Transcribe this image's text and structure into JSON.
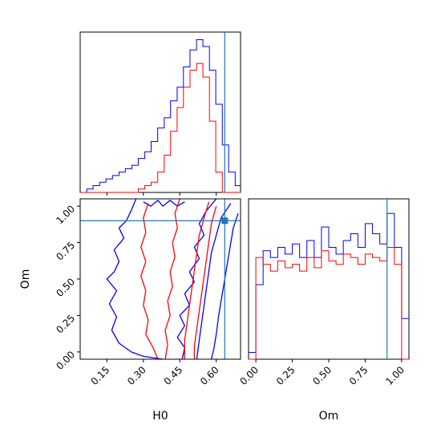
{
  "chart_data": {
    "type": "corner",
    "parameters": [
      "H0",
      "Om"
    ],
    "truths": {
      "H0": 0.635,
      "Om": 0.9
    },
    "colors": {
      "blue": "#0000ff",
      "red": "#ff0000",
      "truth": "#1f77b4",
      "axes": "#000000"
    },
    "H0_ticks": [
      0.15,
      0.3,
      0.45,
      0.6
    ],
    "H0_tick_labels": [
      "0.15",
      "0.30",
      "0.45",
      "0.60"
    ],
    "Om_ticks": [
      0.0,
      0.25,
      0.5,
      0.75,
      1.0
    ],
    "Om_tick_labels": [
      "0.00",
      "0.25",
      "0.50",
      "0.75",
      "1.00"
    ],
    "H0_range": [
      0.04,
      0.7
    ],
    "Om_range": [
      -0.05,
      1.05
    ],
    "hist_H0": {
      "bins": [
        0.04,
        0.067,
        0.093,
        0.12,
        0.146,
        0.173,
        0.2,
        0.226,
        0.253,
        0.279,
        0.306,
        0.332,
        0.359,
        0.386,
        0.412,
        0.439,
        0.465,
        0.492,
        0.519,
        0.545,
        0.572,
        0.598,
        0.625,
        0.651,
        0.678,
        0.7
      ],
      "series": [
        {
          "color": "blue",
          "counts": [
            0,
            1,
            2,
            3,
            4,
            5,
            6,
            7,
            8,
            10,
            12,
            15,
            19,
            22,
            27,
            31,
            37,
            42,
            45,
            43,
            36,
            26,
            14,
            6,
            2
          ]
        },
        {
          "color": "red",
          "counts": [
            0,
            0,
            0,
            0,
            0,
            0,
            0,
            0,
            0,
            1,
            2,
            3,
            6,
            11,
            18,
            25,
            31,
            36,
            38,
            34,
            21,
            6,
            0,
            0,
            0
          ]
        }
      ]
    },
    "hist_Om": {
      "bins": [
        -0.05,
        0.0,
        0.05,
        0.1,
        0.15,
        0.2,
        0.25,
        0.3,
        0.35,
        0.4,
        0.45,
        0.5,
        0.55,
        0.6,
        0.65,
        0.7,
        0.75,
        0.8,
        0.85,
        0.9,
        0.95,
        1.0,
        1.05
      ],
      "series": [
        {
          "color": "blue",
          "counts": [
            2,
            22,
            32,
            30,
            33,
            31,
            34,
            30,
            35,
            30,
            39,
            33,
            31,
            35,
            37,
            33,
            40,
            37,
            34,
            43,
            33,
            12
          ]
        },
        {
          "color": "red",
          "counts": [
            0,
            30,
            28,
            26,
            29,
            27,
            28,
            26,
            30,
            27,
            32,
            29,
            28,
            31,
            30,
            28,
            31,
            30,
            29,
            33,
            28,
            0
          ]
        }
      ]
    },
    "contours": [
      {
        "color": "blue",
        "points": [
          [
            0.27,
            1.05
          ],
          [
            0.25,
            0.97
          ],
          [
            0.23,
            0.9
          ],
          [
            0.2,
            0.85
          ],
          [
            0.22,
            0.78
          ],
          [
            0.18,
            0.7
          ],
          [
            0.2,
            0.62
          ],
          [
            0.18,
            0.55
          ],
          [
            0.15,
            0.5
          ],
          [
            0.19,
            0.42
          ],
          [
            0.16,
            0.33
          ],
          [
            0.19,
            0.24
          ],
          [
            0.17,
            0.15
          ],
          [
            0.2,
            0.06
          ],
          [
            0.25,
            0.0
          ],
          [
            0.3,
            -0.03
          ],
          [
            0.38,
            -0.05
          ]
        ]
      },
      {
        "color": "blue",
        "points": [
          [
            0.69,
            0.95
          ],
          [
            0.67,
            0.85
          ],
          [
            0.66,
            0.75
          ],
          [
            0.65,
            0.65
          ],
          [
            0.64,
            0.55
          ],
          [
            0.63,
            0.45
          ],
          [
            0.62,
            0.35
          ],
          [
            0.61,
            0.25
          ],
          [
            0.6,
            0.12
          ],
          [
            0.59,
            0.02
          ],
          [
            0.58,
            -0.05
          ]
        ]
      },
      {
        "color": "blue",
        "points": [
          [
            0.6,
            1.05
          ],
          [
            0.56,
            0.97
          ],
          [
            0.53,
            0.88
          ],
          [
            0.55,
            0.8
          ],
          [
            0.51,
            0.72
          ],
          [
            0.53,
            0.64
          ],
          [
            0.49,
            0.55
          ],
          [
            0.51,
            0.48
          ],
          [
            0.47,
            0.4
          ],
          [
            0.49,
            0.32
          ],
          [
            0.45,
            0.25
          ],
          [
            0.47,
            0.18
          ],
          [
            0.44,
            0.1
          ],
          [
            0.47,
            0.03
          ],
          [
            0.46,
            -0.05
          ]
        ]
      },
      {
        "color": "blue",
        "points": [
          [
            0.66,
            1.02
          ],
          [
            0.62,
            0.92
          ],
          [
            0.6,
            0.8
          ],
          [
            0.58,
            0.68
          ],
          [
            0.57,
            0.56
          ],
          [
            0.56,
            0.44
          ],
          [
            0.55,
            0.32
          ],
          [
            0.54,
            0.2
          ],
          [
            0.53,
            0.08
          ],
          [
            0.52,
            -0.05
          ]
        ]
      },
      {
        "color": "blue",
        "points": [
          [
            0.3,
            1.03
          ],
          [
            0.33,
            1.0
          ],
          [
            0.36,
            1.04
          ],
          [
            0.38,
            1.0
          ],
          [
            0.41,
            1.04
          ],
          [
            0.44,
            1.0
          ],
          [
            0.47,
            1.03
          ]
        ]
      },
      {
        "color": "red",
        "points": [
          [
            0.45,
            1.05
          ],
          [
            0.43,
            0.95
          ],
          [
            0.44,
            0.85
          ],
          [
            0.42,
            0.75
          ],
          [
            0.43,
            0.65
          ],
          [
            0.41,
            0.55
          ],
          [
            0.42,
            0.45
          ],
          [
            0.4,
            0.35
          ],
          [
            0.41,
            0.25
          ],
          [
            0.39,
            0.15
          ],
          [
            0.4,
            0.05
          ],
          [
            0.39,
            -0.05
          ]
        ]
      },
      {
        "color": "red",
        "points": [
          [
            0.32,
            1.02
          ],
          [
            0.3,
            0.92
          ],
          [
            0.31,
            0.82
          ],
          [
            0.29,
            0.72
          ],
          [
            0.31,
            0.62
          ],
          [
            0.29,
            0.52
          ],
          [
            0.31,
            0.42
          ],
          [
            0.3,
            0.32
          ],
          [
            0.32,
            0.22
          ],
          [
            0.31,
            0.12
          ],
          [
            0.34,
            0.03
          ],
          [
            0.36,
            -0.05
          ]
        ]
      },
      {
        "color": "red",
        "points": [
          [
            0.57,
            1.03
          ],
          [
            0.55,
            0.92
          ],
          [
            0.53,
            0.8
          ],
          [
            0.52,
            0.68
          ],
          [
            0.51,
            0.56
          ],
          [
            0.5,
            0.44
          ],
          [
            0.49,
            0.32
          ],
          [
            0.48,
            0.2
          ],
          [
            0.47,
            0.08
          ],
          [
            0.47,
            -0.05
          ]
        ]
      },
      {
        "color": "red",
        "points": [
          [
            0.6,
            1.0
          ],
          [
            0.58,
            0.88
          ],
          [
            0.57,
            0.76
          ],
          [
            0.56,
            0.64
          ],
          [
            0.55,
            0.52
          ],
          [
            0.54,
            0.4
          ],
          [
            0.53,
            0.28
          ],
          [
            0.52,
            0.16
          ],
          [
            0.51,
            0.04
          ],
          [
            0.51,
            -0.05
          ]
        ]
      }
    ],
    "xlabel_H0": "H0",
    "xlabel_Om": "Om",
    "ylabel_Om": "Om"
  }
}
